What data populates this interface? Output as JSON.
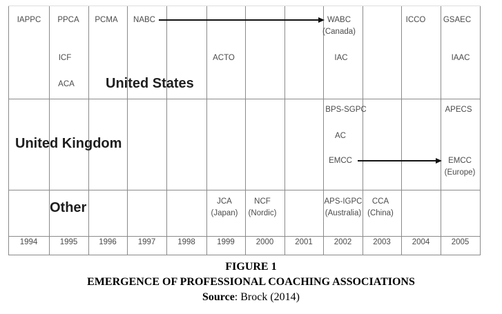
{
  "regions": {
    "us": "United States",
    "uk": "United Kingdom",
    "other": "Other"
  },
  "years": [
    "1994",
    "1995",
    "1996",
    "1997",
    "1998",
    "1999",
    "2000",
    "2001",
    "2002",
    "2003",
    "2004",
    "2005"
  ],
  "us": {
    "iappc": "IAPPC",
    "ppca": "PPCA",
    "pcma": "PCMA",
    "nabc": "NABC",
    "wabc": "WABC",
    "wabc_sub": "(Canada)",
    "icco": "ICCO",
    "gsaec": "GSAEC",
    "icf": "ICF",
    "aca": "ACA",
    "acto": "ACTO",
    "iac": "IAC",
    "iaac": "IAAC"
  },
  "uk": {
    "bps_sgpc": "BPS-SGPC",
    "apecs": "APECS",
    "ac": "AC",
    "emcc": "EMCC",
    "emcc_europe": "EMCC",
    "emcc_europe_sub": "(Europe)"
  },
  "other": {
    "jca": "JCA",
    "jca_sub": "(Japan)",
    "ncf": "NCF",
    "ncf_sub": "(Nordic)",
    "aps_igpc": "APS-IGPC",
    "aps_igpc_sub": "(Australia)",
    "cca": "CCA",
    "cca_sub": "(China)"
  },
  "caption": {
    "figure": "FIGURE 1",
    "title": "EMERGENCE OF PROFESSIONAL COACHING ASSOCIATIONS",
    "source_label": "Source",
    "source_text": ": Brock (2014)"
  }
}
